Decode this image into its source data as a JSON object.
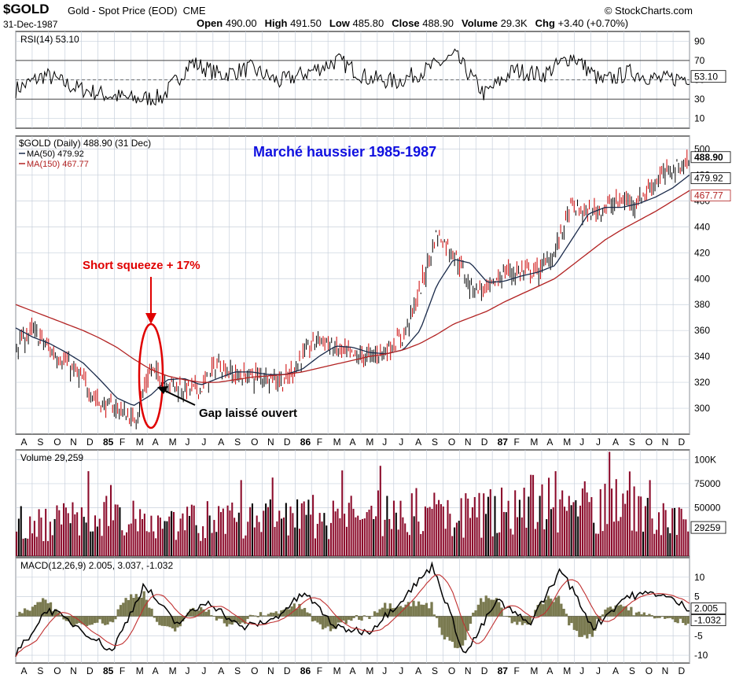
{
  "header": {
    "ticker": "$GOLD",
    "description": "Gold - Spot Price (EOD)",
    "exchange": "CME",
    "site": "© StockCharts.com",
    "date": "31-Dec-1987",
    "ohlc": [
      {
        "k": "Open",
        "v": "490.00"
      },
      {
        "k": "High",
        "v": "491.50"
      },
      {
        "k": "Low",
        "v": "485.80"
      },
      {
        "k": "Close",
        "v": "488.90"
      },
      {
        "k": "Volume",
        "v": "29.3K"
      },
      {
        "k": "Chg",
        "v": "+3.40 (+0.70%)"
      }
    ]
  },
  "annotations": {
    "title": "Marché haussier 1985-1987",
    "squeeze": "Short squeeze + 17%",
    "gap": "Gap  laissé ouvert"
  },
  "colors": {
    "price_up": "#000000",
    "price_down": "#cc0000",
    "ma50": "#1a2a4a",
    "ma150": "#b22222",
    "annotation_red": "#e00000",
    "annotation_blue": "#1010e0",
    "volume_bar": "#8b0a2a",
    "macd_line": "#000000",
    "signal_line": "#c03030",
    "histogram": "#7a7a50",
    "grid": "#c8d0dc"
  },
  "chart_data": [
    {
      "type": "line",
      "panel": "RSI",
      "legend": "RSI(14) 53.10",
      "ylim": [
        0,
        100
      ],
      "y_ticks": [
        "90",
        "70",
        "50",
        "30",
        "10"
      ],
      "reference_lines": [
        70,
        30
      ],
      "last_value": "53.10",
      "series": [
        {
          "name": "RSI(14)",
          "x": [
            "Aug-84",
            "Oct-84",
            "Dec-84",
            "Jan-85",
            "Feb-85",
            "Mar-85",
            "Apr-85",
            "Jun-85",
            "Aug-85",
            "Oct-85",
            "Dec-85",
            "Feb-86",
            "Apr-86",
            "Jun-86",
            "Aug-86",
            "Sep-86",
            "Nov-86",
            "Jan-87",
            "Mar-87",
            "May-87",
            "Jul-87",
            "Sep-87",
            "Nov-87",
            "Dec-87"
          ],
          "values": [
            40,
            55,
            42,
            35,
            30,
            32,
            68,
            55,
            62,
            48,
            58,
            70,
            52,
            48,
            60,
            75,
            35,
            60,
            55,
            75,
            48,
            58,
            50,
            53
          ]
        }
      ]
    },
    {
      "type": "line",
      "panel": "Price",
      "legend": "$GOLD (Daily) 488.90 (31 Dec)",
      "ylim": [
        280,
        510
      ],
      "y_ticks": [
        "500",
        "480",
        "460",
        "440",
        "420",
        "400",
        "380",
        "360",
        "340",
        "320",
        "300"
      ],
      "x_ticks": [
        "A",
        "S",
        "O",
        "N",
        "D",
        "85",
        "F",
        "M",
        "A",
        "M",
        "J",
        "J",
        "A",
        "S",
        "O",
        "N",
        "D",
        "86",
        "F",
        "M",
        "A",
        "M",
        "J",
        "J",
        "A",
        "S",
        "O",
        "N",
        "D",
        "87",
        "F",
        "M",
        "A",
        "M",
        "J",
        "J",
        "A",
        "S",
        "O",
        "N",
        "D"
      ],
      "x": [
        "Aug-84",
        "Sep-84",
        "Oct-84",
        "Nov-84",
        "Dec-84",
        "Jan-85",
        "Feb-85",
        "Mar-85",
        "Apr-85",
        "May-85",
        "Jun-85",
        "Jul-85",
        "Aug-85",
        "Sep-85",
        "Oct-85",
        "Nov-85",
        "Dec-85",
        "Jan-86",
        "Feb-86",
        "Mar-86",
        "Apr-86",
        "May-86",
        "Jun-86",
        "Jul-86",
        "Aug-86",
        "Sep-86",
        "Oct-86",
        "Nov-86",
        "Dec-86",
        "Jan-87",
        "Feb-87",
        "Mar-87",
        "Apr-87",
        "May-87",
        "Jun-87",
        "Jul-87",
        "Aug-87",
        "Sep-87",
        "Oct-87",
        "Nov-87",
        "Dec-87"
      ],
      "series": [
        {
          "name": "$GOLD",
          "values": [
            350,
            360,
            345,
            335,
            320,
            303,
            300,
            290,
            330,
            320,
            315,
            315,
            335,
            325,
            325,
            325,
            320,
            340,
            355,
            345,
            340,
            340,
            345,
            355,
            390,
            435,
            420,
            395,
            390,
            405,
            405,
            405,
            420,
            455,
            450,
            455,
            460,
            460,
            475,
            485,
            489
          ]
        },
        {
          "name": "MA(50)",
          "values": [
            362,
            355,
            350,
            343,
            335,
            322,
            308,
            302,
            310,
            322,
            323,
            318,
            323,
            328,
            328,
            326,
            326,
            330,
            340,
            348,
            347,
            343,
            342,
            345,
            360,
            395,
            415,
            412,
            397,
            398,
            402,
            405,
            410,
            430,
            450,
            455,
            455,
            458,
            463,
            470,
            480
          ]
        },
        {
          "name": "MA(150)",
          "values": [
            380,
            375,
            370,
            365,
            360,
            354,
            347,
            338,
            330,
            325,
            322,
            320,
            320,
            322,
            324,
            325,
            326,
            328,
            331,
            334,
            337,
            340,
            342,
            345,
            350,
            357,
            365,
            370,
            375,
            382,
            388,
            394,
            400,
            410,
            420,
            430,
            438,
            445,
            452,
            460,
            468
          ]
        }
      ],
      "value_labels": [
        "488.90",
        "479.92",
        "467.77"
      ],
      "legend_ma50": "MA(50) 479.92",
      "legend_ma150": "MA(150) 467.77"
    },
    {
      "type": "bar",
      "panel": "Volume",
      "legend": "Volume 29,259",
      "ylim": [
        0,
        110000
      ],
      "y_ticks": [
        "100K",
        "75000",
        "50000"
      ],
      "last_value": "29259",
      "series": [
        {
          "name": "Volume",
          "x": [
            "Aug-84",
            "Nov-84",
            "Feb-85",
            "May-85",
            "Aug-85",
            "Nov-85",
            "Feb-86",
            "May-86",
            "Aug-86",
            "Nov-86",
            "Feb-87",
            "May-87",
            "Aug-87",
            "Nov-87",
            "Dec-87"
          ],
          "values": [
            35000,
            38000,
            50000,
            40000,
            38000,
            40000,
            42000,
            45000,
            48000,
            45000,
            48000,
            62000,
            55000,
            60000,
            29259
          ]
        }
      ]
    },
    {
      "type": "line",
      "panel": "MACD",
      "legend": "MACD(12,26,9) 2.005, 3.037, -1.032",
      "ylim": [
        -12,
        15
      ],
      "y_ticks": [
        "10",
        "5",
        "-5",
        "-10"
      ],
      "value_labels": [
        "2.005",
        "-1.032"
      ],
      "series": [
        {
          "name": "MACD",
          "x": [
            "Aug-84",
            "Oct-84",
            "Dec-84",
            "Feb-85",
            "Apr-85",
            "Jun-85",
            "Aug-85",
            "Oct-85",
            "Dec-85",
            "Feb-86",
            "Apr-86",
            "Jun-86",
            "Aug-86",
            "Sep-86",
            "Nov-86",
            "Jan-87",
            "Mar-87",
            "May-87",
            "Jul-87",
            "Sep-87",
            "Nov-87",
            "Dec-87"
          ],
          "values": [
            -10,
            2,
            -3,
            -9,
            8,
            -2,
            4,
            -3,
            -1,
            6,
            -3,
            -4,
            4,
            13,
            -10,
            4,
            -2,
            12,
            -3,
            5,
            6,
            2
          ]
        }
      ]
    }
  ]
}
